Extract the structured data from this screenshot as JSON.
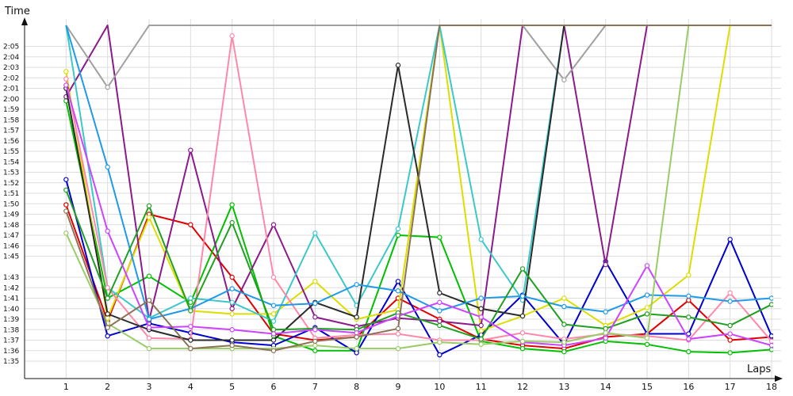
{
  "chart_data": {
    "type": "line",
    "xlabel": "Laps",
    "ylabel": "Time",
    "x": [
      1,
      2,
      3,
      4,
      5,
      6,
      7,
      8,
      9,
      10,
      11,
      12,
      13,
      14,
      15,
      16,
      17,
      18
    ],
    "xlim": [
      0,
      18
    ],
    "ylim": [
      94,
      127
    ],
    "yticks": [
      95,
      96,
      97,
      98,
      99,
      100,
      101,
      102,
      103,
      105,
      106,
      107,
      108,
      109,
      110,
      111,
      112,
      113,
      114,
      115,
      116,
      117,
      118,
      119,
      120,
      121,
      122,
      123,
      124,
      125
    ],
    "ytick_labels": [
      "1:35",
      "1:36",
      "1:37",
      "1:38",
      "1:39",
      "1:40",
      "1:41",
      "1:42",
      "1:43",
      "1:45",
      "1:46",
      "1:47",
      "1:48",
      "1:49",
      "1:50",
      "1:51",
      "1:52",
      "1:53",
      "1:54",
      "1:55",
      "1:56",
      "1:57",
      "1:58",
      "1:59",
      "2:00",
      "2:01",
      "2:02",
      "2:03",
      "2:04",
      "2:05"
    ],
    "grid": true,
    "legend": "none",
    "series": [
      {
        "color": "#e00000",
        "values": [
          109.9,
          98.8,
          109.0,
          108.0,
          103.0,
          97.6,
          97.0,
          97.3,
          101.0,
          99.0,
          97.1,
          96.5,
          96.2,
          97.3,
          97.6,
          100.8,
          97.0,
          97.3
        ]
      },
      {
        "color": "#00c000",
        "values": [
          119.8,
          101.0,
          103.1,
          100.6,
          109.9,
          97.4,
          96.0,
          96.0,
          107.0,
          106.8,
          96.9,
          96.2,
          95.9,
          96.9,
          96.6,
          95.9,
          95.8,
          96.1
        ]
      },
      {
        "color": "#0000d0",
        "values": [
          112.3,
          97.4,
          98.6,
          97.7,
          96.8,
          96.5,
          98.2,
          95.8,
          102.6,
          95.6,
          97.5,
          101.3,
          96.6,
          104.5,
          97.6,
          97.6,
          106.6,
          97.4
        ]
      },
      {
        "color": "#dddd00",
        "values": [
          122.6,
          99.1,
          108.7,
          99.8,
          99.5,
          99.5,
          102.6,
          99.0,
          99.9,
          127.0,
          97.9,
          99.3,
          101.0,
          98.4,
          100.1,
          103.2,
          127.0,
          127.0
        ]
      },
      {
        "color": "#8b1a8b",
        "values": [
          120.2,
          127.0,
          98.9,
          115.1,
          100.0,
          108.0,
          99.2,
          98.3,
          99.1,
          98.8,
          98.4,
          127.0,
          127.0,
          104.2,
          127.0,
          127.0,
          127.0,
          127.0
        ]
      },
      {
        "color": "#3cc8c8",
        "values": [
          127.0,
          102.0,
          99.1,
          101.0,
          100.6,
          98.8,
          107.2,
          100.3,
          107.6,
          127.0,
          106.6,
          100.8,
          127.0,
          127.0,
          127.0,
          127.0,
          127.0,
          127.0
        ]
      },
      {
        "color": "#a0a0a0",
        "values": [
          127.0,
          121.1,
          127.0,
          127.0,
          127.0,
          127.0,
          127.0,
          127.0,
          127.0,
          127.0,
          127.0,
          127.0,
          121.8,
          127.0,
          127.0,
          127.0,
          127.0,
          127.0
        ]
      },
      {
        "color": "#ff88aa",
        "values": [
          121.9,
          102.0,
          97.2,
          97.1,
          126.0,
          103.0,
          97.2,
          97.5,
          97.6,
          97.0,
          97.0,
          97.7,
          97.1,
          97.6,
          97.4,
          97.0,
          101.5,
          96.9
        ]
      },
      {
        "color": "#2a2a2a",
        "values": [
          121.0,
          99.5,
          98.0,
          97.0,
          97.0,
          97.0,
          100.6,
          99.2,
          123.2,
          101.5,
          100.0,
          99.3,
          127.0,
          127.0,
          127.0,
          127.0,
          127.0,
          127.0
        ]
      },
      {
        "color": "#1f9ae8",
        "values": [
          127.0,
          113.5,
          99.0,
          100.0,
          101.9,
          100.3,
          100.5,
          102.3,
          101.7,
          99.8,
          101.0,
          101.2,
          100.2,
          99.7,
          101.3,
          101.2,
          100.7,
          101.0
        ]
      },
      {
        "color": "#20a020",
        "values": [
          111.3,
          101.0,
          109.8,
          99.8,
          108.2,
          98.0,
          98.1,
          98.0,
          99.6,
          98.4,
          97.1,
          103.8,
          98.5,
          98.1,
          99.5,
          99.2,
          98.4,
          100.4
        ]
      },
      {
        "color": "#cc44ff",
        "values": [
          121.3,
          107.4,
          98.2,
          98.3,
          98.0,
          97.6,
          98.0,
          97.7,
          99.3,
          100.6,
          99.2,
          96.8,
          96.5,
          97.2,
          104.1,
          97.1,
          97.6,
          96.5
        ]
      },
      {
        "color": "#99cc66",
        "values": [
          107.2,
          98.6,
          96.2,
          96.2,
          96.2,
          96.2,
          96.5,
          96.2,
          96.2,
          96.8,
          96.6,
          96.9,
          96.8,
          97.7,
          97.2,
          127.0,
          127.0,
          127.0
        ]
      },
      {
        "color": "#8b7355",
        "values": [
          109.3,
          98.2,
          100.8,
          96.2,
          96.5,
          96.0,
          96.9,
          97.3,
          98.1,
          127.0,
          127.0,
          127.0,
          127.0,
          127.0,
          127.0,
          127.0,
          127.0,
          127.0
        ]
      }
    ]
  }
}
